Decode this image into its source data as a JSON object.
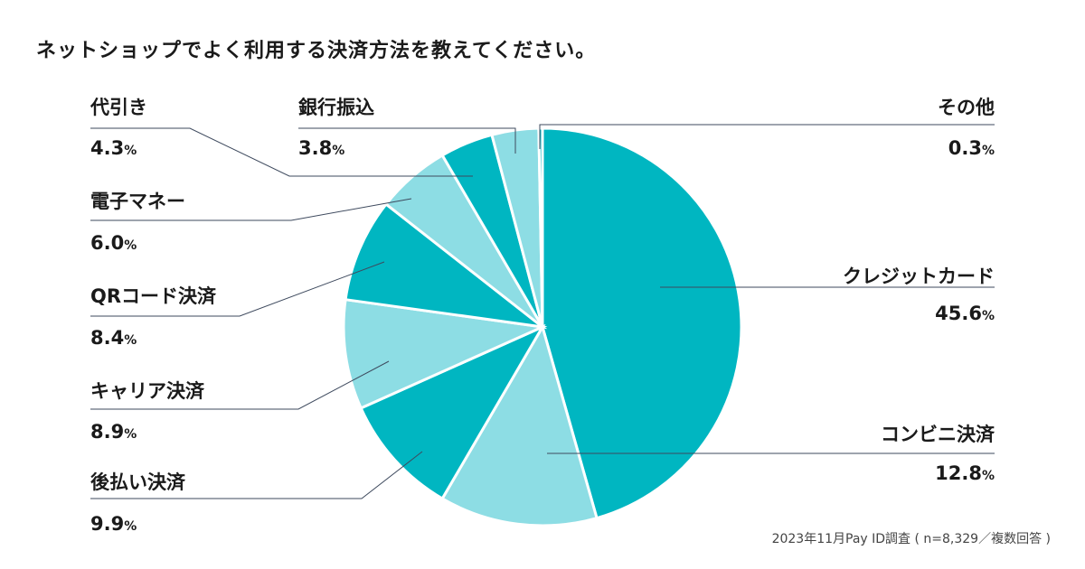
{
  "title": "ネットショップでよく利用する決済方法を教えてください。",
  "footnote": "2023年11月Pay ID調査 ( n=8,329／複数回答 )",
  "colors": {
    "dark": "#00b6c1",
    "light": "#8ddde4",
    "line": "#3e4a5e"
  },
  "chart_data": {
    "type": "pie",
    "title": "ネットショップでよく利用する決済方法を教えてください。",
    "unit": "%",
    "start": "top, clockwise",
    "slices": [
      {
        "label": "クレジットカード",
        "value": 45.6,
        "value_text": "45.6",
        "shade": "dark"
      },
      {
        "label": "コンビニ決済",
        "value": 12.8,
        "value_text": "12.8",
        "shade": "light"
      },
      {
        "label": "後払い決済",
        "value": 9.9,
        "value_text": "9.9",
        "shade": "dark"
      },
      {
        "label": "キャリア決済",
        "value": 8.9,
        "value_text": "8.9",
        "shade": "light"
      },
      {
        "label": "QRコード決済",
        "value": 8.4,
        "value_text": "8.4",
        "shade": "dark"
      },
      {
        "label": "電子マネー",
        "value": 6.0,
        "value_text": "6.0",
        "shade": "light"
      },
      {
        "label": "代引き",
        "value": 4.3,
        "value_text": "4.3",
        "shade": "dark"
      },
      {
        "label": "銀行振込",
        "value": 3.8,
        "value_text": "3.8",
        "shade": "light"
      },
      {
        "label": "その他",
        "value": 0.3,
        "value_text": "0.3",
        "shade": "dark"
      }
    ]
  }
}
